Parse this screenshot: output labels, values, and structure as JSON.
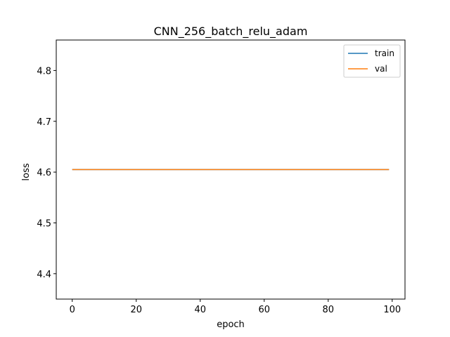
{
  "chart_data": {
    "type": "line",
    "title": "CNN_256_batch_relu_adam",
    "xlabel": "epoch",
    "ylabel": "loss",
    "xlim": [
      -5,
      104
    ],
    "ylim": [
      4.35,
      4.86
    ],
    "xticks": [
      0,
      20,
      40,
      60,
      80,
      100
    ],
    "yticks": [
      4.4,
      4.5,
      4.6,
      4.7,
      4.8
    ],
    "xtick_labels": [
      "0",
      "20",
      "40",
      "60",
      "80",
      "100"
    ],
    "ytick_labels": [
      "4.4",
      "4.5",
      "4.6",
      "4.7",
      "4.8"
    ],
    "grid": false,
    "legend_position": "top-right",
    "series": [
      {
        "name": "train",
        "color": "#1f77b4",
        "x": [
          0,
          99
        ],
        "y": [
          4.605,
          4.605
        ]
      },
      {
        "name": "val",
        "color": "#ff7f0e",
        "x": [
          0,
          99
        ],
        "y": [
          4.605,
          4.605
        ]
      }
    ]
  }
}
